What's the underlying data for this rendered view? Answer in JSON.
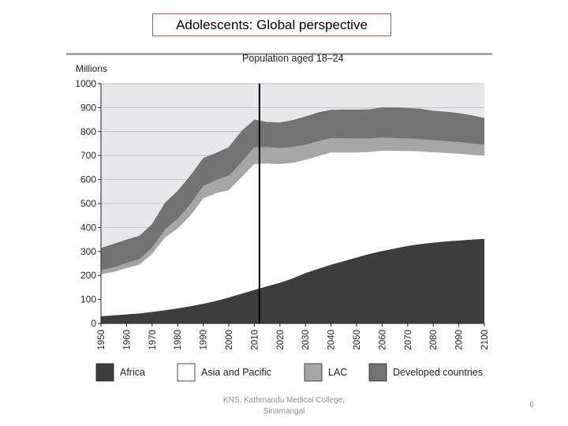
{
  "slide": {
    "title": "Adolescents: Global perspective",
    "footer_line1": "KNS, Kathmandu Medical College,",
    "footer_line2": "Sinamangal",
    "page_number": "6"
  },
  "chart_data": {
    "type": "area",
    "stacked": true,
    "title": "Population aged 18–24",
    "ylabel": "Millions",
    "xlabel": "",
    "xlim": [
      1950,
      2100
    ],
    "ylim": [
      0,
      1000
    ],
    "y_ticks": [
      0,
      100,
      200,
      300,
      400,
      500,
      600,
      700,
      800,
      900,
      1000
    ],
    "x_ticks": [
      1950,
      1960,
      1970,
      1980,
      1990,
      2000,
      2010,
      2020,
      2030,
      2040,
      2050,
      2060,
      2070,
      2080,
      2090,
      2100
    ],
    "grid": "horizontal",
    "marker_line_x": 2012,
    "legend_position": "bottom",
    "x": [
      1950,
      1955,
      1960,
      1965,
      1970,
      1975,
      1980,
      1985,
      1990,
      1995,
      2000,
      2005,
      2010,
      2015,
      2020,
      2025,
      2030,
      2035,
      2040,
      2045,
      2050,
      2055,
      2060,
      2065,
      2070,
      2075,
      2080,
      2085,
      2090,
      2095,
      2100
    ],
    "series": [
      {
        "name": "Africa",
        "color": "#3d3d3d",
        "values": [
          30,
          34,
          38,
          42,
          48,
          55,
          63,
          72,
          82,
          94,
          108,
          124,
          140,
          155,
          170,
          188,
          210,
          228,
          245,
          260,
          275,
          290,
          302,
          313,
          323,
          331,
          337,
          342,
          346,
          350,
          353
        ]
      },
      {
        "name": "Asia and Pacific",
        "color": "#ffffff",
        "values": [
          175,
          181,
          193,
          203,
          242,
          303,
          333,
          378,
          439,
          449,
          448,
          486,
          525,
          512,
          495,
          482,
          472,
          470,
          468,
          452,
          438,
          425,
          418,
          407,
          396,
          386,
          377,
          369,
          362,
          353,
          347
        ]
      },
      {
        "name": "LAC",
        "color": "#a6a6a6",
        "values": [
          17,
          19,
          21,
          23,
          25,
          33,
          40,
          47,
          52,
          55,
          60,
          62,
          70,
          68,
          66,
          66,
          63,
          62,
          60,
          60,
          58,
          56,
          55,
          53,
          52,
          51,
          50,
          49,
          48,
          47,
          45
        ]
      },
      {
        "name": "Developed countries",
        "color": "#737373",
        "values": [
          93,
          98,
          98,
          97,
          100,
          112,
          117,
          120,
          117,
          113,
          120,
          131,
          115,
          105,
          107,
          112,
          118,
          120,
          118,
          120,
          121,
          122,
          126,
          128,
          128,
          127,
          123,
          123,
          121,
          118,
          112
        ]
      }
    ]
  }
}
